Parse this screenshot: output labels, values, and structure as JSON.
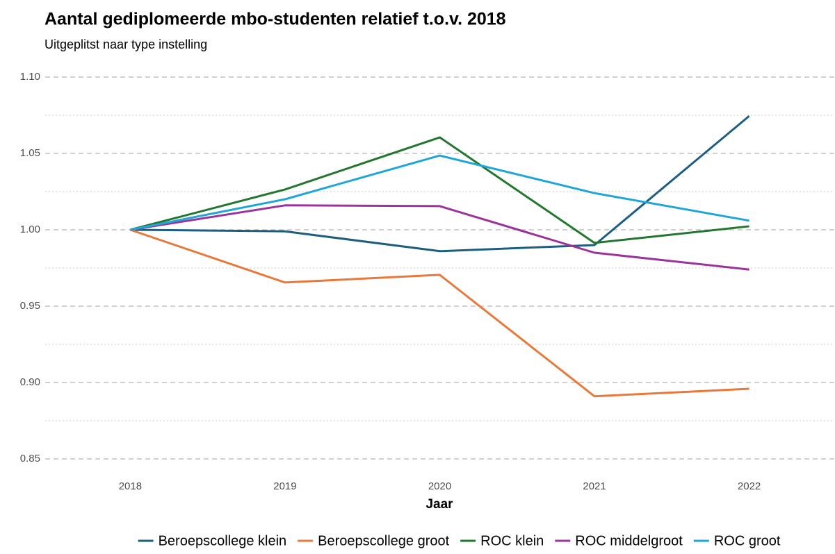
{
  "chart_data": {
    "type": "line",
    "title": "Aantal gediplomeerde mbo-studenten relatief t.o.v. 2018",
    "subtitle": "Uitgeplitst naar type instelling",
    "x_label": "Jaar",
    "x": [
      2018,
      2019,
      2020,
      2021,
      2022
    ],
    "series": [
      {
        "name": "Beroepscollege klein",
        "color": "#1d5e7e",
        "values": [
          1.0,
          0.999,
          0.986,
          0.99,
          1.0745
        ]
      },
      {
        "name": "Beroepscollege groot",
        "color": "#e8793a",
        "values": [
          1.0,
          0.9655,
          0.9705,
          0.891,
          0.8959
        ]
      },
      {
        "name": "ROC klein",
        "color": "#23762f",
        "values": [
          1.0,
          1.0264,
          1.0605,
          0.9914,
          1.0023
        ]
      },
      {
        "name": "ROC middelgroot",
        "color": "#9c339c",
        "values": [
          1.0,
          1.016,
          1.0155,
          0.985,
          0.974
        ]
      },
      {
        "name": "ROC groot",
        "color": "#1ea6d8",
        "values": [
          1.0,
          1.02,
          1.0486,
          1.024,
          1.006
        ]
      }
    ],
    "xlim": [
      2017.45,
      2022.55
    ],
    "xticks": [
      2018,
      2019,
      2020,
      2021,
      2022
    ],
    "ylim": [
      0.845,
      1.105
    ],
    "yticks": [
      {
        "value": 0.85,
        "label": "0.85"
      },
      {
        "value": 0.9,
        "label": "0.90"
      },
      0.95,
      {
        "value": 1.0,
        "label": "1.00"
      },
      1.05,
      {
        "value": 1.1,
        "label": "1.10"
      }
    ],
    "y_minor_ticks": [
      0.875,
      0.925,
      0.975,
      1.025,
      1.075
    ],
    "grid": true,
    "legend": "bottom"
  }
}
